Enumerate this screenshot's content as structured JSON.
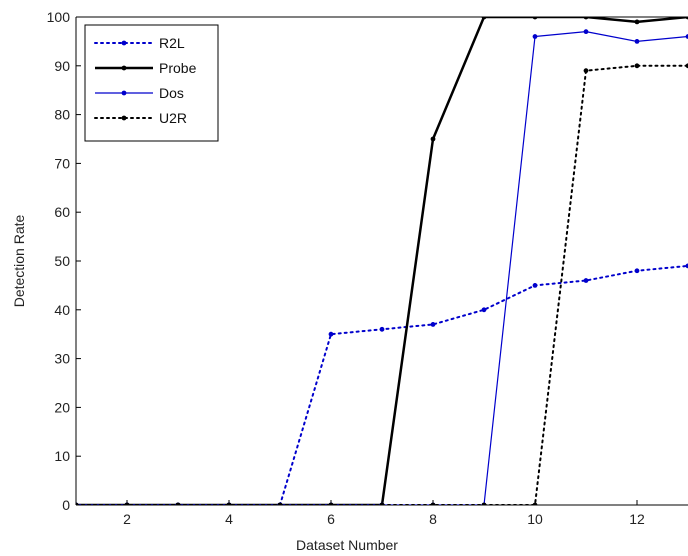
{
  "chart_data": {
    "type": "line",
    "xlabel": "Dataset Number",
    "ylabel": "Detection Rate",
    "xlim": [
      1,
      13
    ],
    "ylim": [
      0,
      100
    ],
    "x_ticks": [
      2,
      4,
      6,
      8,
      10,
      12
    ],
    "y_ticks": [
      0,
      10,
      20,
      30,
      40,
      50,
      60,
      70,
      80,
      90,
      100
    ],
    "grid": false,
    "legend_position": "top-left",
    "series": [
      {
        "name": "R2L",
        "color": "#0000cc",
        "line_style": "dotted",
        "x": [
          1,
          2,
          3,
          4,
          5,
          6,
          7,
          8,
          9,
          10,
          11,
          12,
          13
        ],
        "values": [
          0,
          0,
          0,
          0,
          0,
          35,
          36,
          37,
          40,
          45,
          46,
          48,
          49
        ]
      },
      {
        "name": "Probe",
        "color": "#000000",
        "line_style": "solid-thick",
        "x": [
          1,
          2,
          3,
          4,
          5,
          6,
          7,
          8,
          9,
          10,
          11,
          12,
          13
        ],
        "values": [
          0,
          0,
          0,
          0,
          0,
          0,
          0,
          75,
          100,
          100,
          100,
          99,
          100
        ]
      },
      {
        "name": "Dos",
        "color": "#0000cc",
        "line_style": "solid",
        "x": [
          1,
          2,
          3,
          4,
          5,
          6,
          7,
          8,
          9,
          10,
          11,
          12,
          13
        ],
        "values": [
          0,
          0,
          0,
          0,
          0,
          0,
          0,
          0,
          0,
          96,
          97,
          95,
          96
        ]
      },
      {
        "name": "U2R",
        "color": "#000000",
        "line_style": "dotted",
        "x": [
          1,
          2,
          3,
          4,
          5,
          6,
          7,
          8,
          9,
          10,
          11,
          12,
          13
        ],
        "values": [
          0,
          0,
          0,
          0,
          0,
          0,
          0,
          0,
          0,
          0,
          89,
          90,
          90
        ]
      }
    ]
  }
}
